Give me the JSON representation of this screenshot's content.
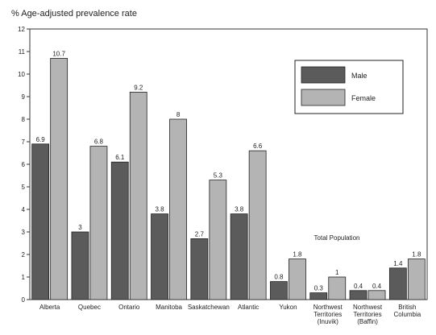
{
  "chart_data": {
    "type": "bar",
    "title": "% Age-adjusted prevalence rate",
    "categories": [
      [
        "Alberta"
      ],
      [
        "Quebec"
      ],
      [
        "Ontario"
      ],
      [
        "Manitoba"
      ],
      [
        "Saskatchewan"
      ],
      [
        "Atlantic"
      ],
      [
        "Yukon"
      ],
      [
        "Northwest",
        "Territories",
        "(Inuvik)"
      ],
      [
        "Northwest",
        "Territories",
        "(Baffin)"
      ],
      [
        "British",
        "Columbia"
      ]
    ],
    "series": [
      {
        "name": "Male",
        "color": "#5b5b5b",
        "values": [
          6.9,
          3.0,
          6.1,
          3.8,
          2.7,
          3.8,
          0.8,
          0.3,
          0.4,
          1.4
        ],
        "labels": [
          "6.9",
          "3",
          "6.1",
          "3.8",
          "2.7",
          "3.8",
          "0.8",
          "0.3",
          "0.4",
          "1.4"
        ]
      },
      {
        "name": "Female",
        "color": "#b4b4b4",
        "values": [
          10.7,
          6.8,
          9.2,
          8.0,
          5.3,
          6.6,
          1.8,
          1.0,
          0.4,
          1.8
        ],
        "labels": [
          "10.7",
          "6.8",
          "9.2",
          "8",
          "5.3",
          "6.6",
          "1.8",
          "1",
          "0.4",
          "1.8"
        ]
      }
    ],
    "ylim": [
      0,
      12
    ],
    "yticks": [
      "0",
      "1",
      "2",
      "3",
      "4",
      "5",
      "6",
      "7",
      "8",
      "9",
      "10",
      "11",
      "12"
    ],
    "legend": {
      "position": "top-right",
      "entries": [
        "Male",
        "Female"
      ]
    },
    "annotation": "Total Population",
    "grid": false
  }
}
